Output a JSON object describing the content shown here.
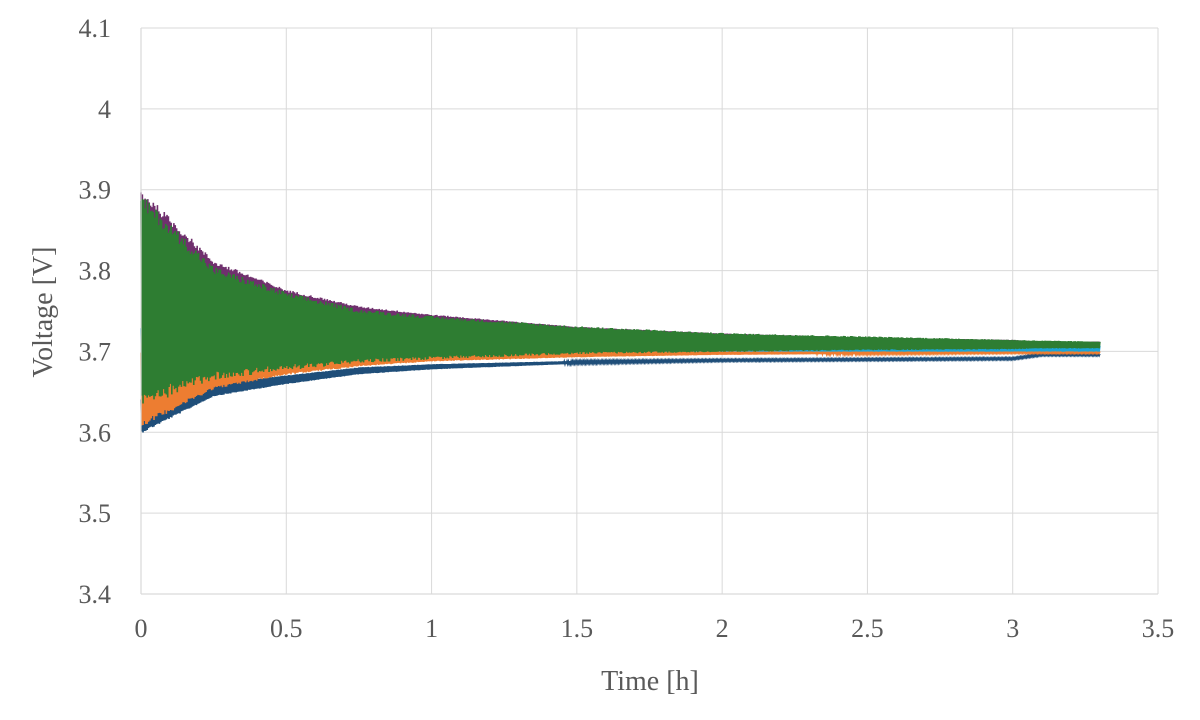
{
  "chart_data": {
    "type": "line",
    "title": "",
    "xlabel": "Time [h]",
    "ylabel": "Voltage [V]",
    "xlim": [
      0,
      3.5
    ],
    "ylim": [
      3.4,
      4.1
    ],
    "xticks": [
      "0",
      "0.5",
      "1",
      "1.5",
      "2",
      "2.5",
      "3",
      "3.5"
    ],
    "yticks": [
      "3.4",
      "3.5",
      "3.6",
      "3.7",
      "3.8",
      "3.9",
      "4",
      "4.1"
    ],
    "grid": true,
    "legend": "none",
    "series": [
      {
        "color": "#1f4e79",
        "x": [
          0,
          0.25,
          0.5,
          0.75,
          1,
          1.5,
          2,
          2.5,
          3,
          3.1,
          3.3
        ],
        "lower": [
          3.6,
          3.645,
          3.66,
          3.672,
          3.678,
          3.685,
          3.688,
          3.689,
          3.69,
          3.695,
          3.695
        ],
        "upper": [
          3.64,
          3.66,
          3.67,
          3.68,
          3.684,
          3.688,
          3.69,
          3.691,
          3.692,
          3.697,
          3.697
        ]
      },
      {
        "color": "#ed7d31",
        "x": [
          0,
          0.25,
          0.5,
          0.75,
          1,
          1.5,
          2,
          2.5,
          3,
          3.1,
          3.3
        ],
        "lower": [
          3.61,
          3.655,
          3.672,
          3.682,
          3.688,
          3.693,
          3.696,
          3.697,
          3.698,
          3.698,
          3.698
        ],
        "upper": [
          3.7,
          3.7,
          3.7,
          3.7,
          3.7,
          3.7,
          3.7,
          3.7,
          3.7,
          3.7,
          3.7
        ]
      },
      {
        "color": "#70306e",
        "x": [
          0,
          0.25,
          0.5,
          0.75,
          1,
          1.5,
          2,
          2.5,
          3,
          3.1,
          3.3
        ],
        "lower": [
          3.74,
          3.74,
          3.735,
          3.73,
          3.725,
          3.72,
          3.715,
          3.712,
          3.71,
          3.708,
          3.708
        ],
        "upper": [
          3.895,
          3.81,
          3.775,
          3.755,
          3.745,
          3.73,
          3.722,
          3.717,
          3.714,
          3.712,
          3.712
        ]
      },
      {
        "color": "#1aa5d8",
        "x": [
          0,
          0.25,
          0.5,
          0.75,
          1,
          1.5,
          2,
          2.5,
          3,
          3.1,
          3.3
        ],
        "lower": [
          3.685,
          3.695,
          3.698,
          3.699,
          3.7,
          3.7,
          3.7,
          3.7,
          3.7,
          3.7,
          3.7
        ],
        "upper": [
          3.73,
          3.712,
          3.708,
          3.706,
          3.705,
          3.705,
          3.705,
          3.705,
          3.705,
          3.707,
          3.707
        ]
      },
      {
        "color": "#2e7d32",
        "x": [
          0,
          0.25,
          0.5,
          0.75,
          1,
          1.5,
          2,
          2.5,
          3,
          3.1,
          3.3
        ],
        "lower": [
          3.64,
          3.67,
          3.68,
          3.688,
          3.692,
          3.698,
          3.7,
          3.702,
          3.703,
          3.704,
          3.704
        ],
        "upper": [
          3.885,
          3.8,
          3.77,
          3.75,
          3.742,
          3.73,
          3.722,
          3.718,
          3.714,
          3.713,
          3.712
        ]
      }
    ]
  }
}
